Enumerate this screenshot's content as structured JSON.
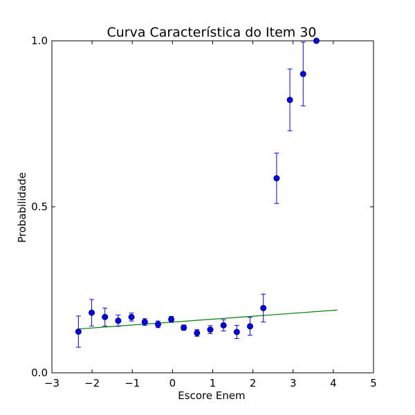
{
  "chart_data": {
    "type": "scatter",
    "title": "Curva Característica do Item 30",
    "xlabel": "Escore Enem",
    "ylabel": "Probabilidade",
    "xlim": [
      -3,
      5
    ],
    "ylim": [
      0.0,
      1.0
    ],
    "x_ticks": [
      -3,
      -2,
      -1,
      0,
      1,
      2,
      3,
      4,
      5
    ],
    "x_tick_labels": [
      "−3",
      "−2",
      "−1",
      "0",
      "1",
      "2",
      "3",
      "4",
      "5"
    ],
    "y_ticks": [
      0.0,
      0.5,
      1.0
    ],
    "y_tick_labels": [
      "0.0",
      "0.5",
      "1.0"
    ],
    "grid": false,
    "series": [
      {
        "kind": "points_with_errorbars",
        "color": "#0000ff",
        "x": [
          -2.34,
          -2.01,
          -1.68,
          -1.35,
          -1.02,
          -0.69,
          -0.36,
          -0.03,
          0.28,
          0.61,
          0.94,
          1.27,
          1.6,
          1.93,
          2.26,
          2.59,
          2.92,
          3.25,
          3.58
        ],
        "y": [
          0.124,
          0.181,
          0.168,
          0.157,
          0.168,
          0.153,
          0.146,
          0.161,
          0.136,
          0.12,
          0.13,
          0.143,
          0.123,
          0.14,
          0.195,
          0.586,
          0.822,
          0.9,
          1.0
        ],
        "y_err": [
          0.047,
          0.04,
          0.027,
          0.017,
          0.012,
          0.01,
          0.01,
          0.009,
          0.008,
          0.01,
          0.012,
          0.017,
          0.02,
          0.027,
          0.042,
          0.076,
          0.093,
          0.096,
          0.0
        ]
      },
      {
        "kind": "line",
        "color": "#008000",
        "x": [
          -2.34,
          4.1
        ],
        "y": [
          0.132,
          0.189
        ]
      }
    ]
  }
}
